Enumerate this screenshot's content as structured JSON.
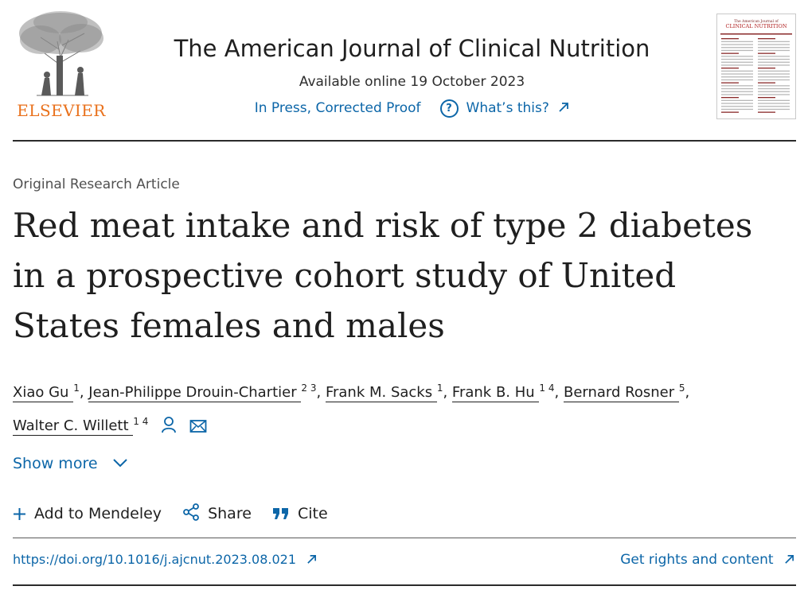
{
  "brand": {
    "publisher": "ELSEVIER",
    "logo_color": "#e9711c"
  },
  "journal": {
    "title": "The American Journal of Clinical Nutrition",
    "available_online": "Available online 19 October 2023",
    "status": "In Press, Corrected Proof",
    "whats_this": "What’s this?",
    "cover_title_line1": "The American Journal of",
    "cover_title_line2": "CLINICAL NUTRITION"
  },
  "article": {
    "type": "Original Research Article",
    "title": "Red meat intake and risk of type 2 diabetes in a prospective cohort study of United States females and males",
    "authors": [
      {
        "name": "Xiao Gu",
        "sup": "1"
      },
      {
        "name": "Jean-Philippe Drouin-Chartier",
        "sup": "2 3"
      },
      {
        "name": "Frank M. Sacks",
        "sup": "1"
      },
      {
        "name": "Frank B. Hu",
        "sup": "1 4"
      },
      {
        "name": "Bernard Rosner",
        "sup": "5"
      },
      {
        "name": "Walter C. Willett",
        "sup": "1 4"
      }
    ],
    "show_more": "Show more",
    "doi": "https://doi.org/10.1016/j.ajcnut.2023.08.021",
    "rights": "Get rights and content"
  },
  "actions": {
    "mendeley": "Add to Mendeley",
    "share": "Share",
    "cite": "Cite"
  },
  "colors": {
    "link": "#0c66a8",
    "text": "#1f1f1f"
  }
}
